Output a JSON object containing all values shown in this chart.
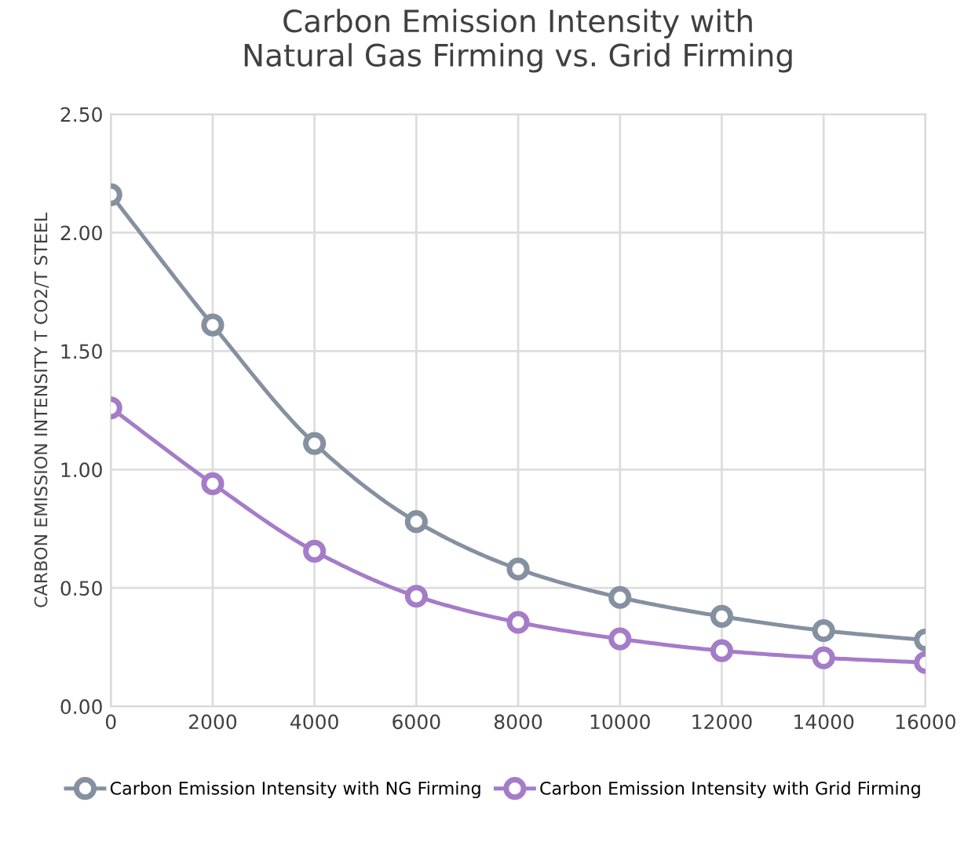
{
  "chart_data": {
    "type": "line",
    "title": "Carbon Emission Intensity with\nNatural Gas Firming vs. Grid Firming",
    "ylabel": "CARBON EMISSION INTENSITY T CO2/T STEEL",
    "x": [
      0,
      2000,
      4000,
      6000,
      8000,
      10000,
      12000,
      14000,
      16000
    ],
    "series": [
      {
        "name": "Carbon Emission Intensity with NG Firming",
        "color": "#8590a0",
        "values": [
          2.16,
          1.61,
          1.11,
          0.78,
          0.58,
          0.46,
          0.38,
          0.32,
          0.28
        ]
      },
      {
        "name": "Carbon Emission Intensity with Grid Firming",
        "color": "#a57cc8",
        "values": [
          1.26,
          0.94,
          0.655,
          0.465,
          0.355,
          0.285,
          0.235,
          0.205,
          0.185
        ]
      }
    ],
    "xlim": [
      0,
      16000
    ],
    "xticks": [
      0,
      2000,
      4000,
      6000,
      8000,
      10000,
      12000,
      14000,
      16000
    ],
    "ylim": [
      0,
      2.5
    ],
    "yticks": [
      {
        "value": 0,
        "label": "0.00"
      },
      {
        "value": 0.5,
        "label": "0.50"
      },
      {
        "value": 1,
        "label": "1.00"
      },
      {
        "value": 1.5,
        "label": "1.50"
      },
      {
        "value": 2,
        "label": "2.00"
      },
      {
        "value": 2.5,
        "label": "2.50"
      }
    ],
    "grid": true,
    "legend": "bottom",
    "marker": "circle",
    "line_style": "solid"
  }
}
